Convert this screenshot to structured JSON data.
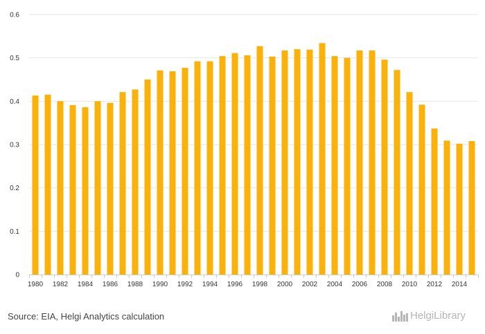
{
  "chart_data": {
    "type": "bar",
    "title": "",
    "xlabel": "",
    "ylabel": "",
    "categories": [
      "1980",
      "1981",
      "1982",
      "1983",
      "1984",
      "1985",
      "1986",
      "1987",
      "1988",
      "1989",
      "1990",
      "1991",
      "1992",
      "1993",
      "1994",
      "1995",
      "1996",
      "1997",
      "1998",
      "1999",
      "2000",
      "2001",
      "2002",
      "2003",
      "2004",
      "2005",
      "2006",
      "2007",
      "2008",
      "2009",
      "2010",
      "2011",
      "2012",
      "2013",
      "2014",
      "2015"
    ],
    "x_tick_labels": [
      "1980",
      "1982",
      "1984",
      "1986",
      "1988",
      "1990",
      "1992",
      "1994",
      "1996",
      "1998",
      "2000",
      "2002",
      "2004",
      "2006",
      "2008",
      "2010",
      "2012",
      "2014"
    ],
    "values": [
      0.413,
      0.415,
      0.4,
      0.391,
      0.386,
      0.4,
      0.396,
      0.421,
      0.427,
      0.45,
      0.471,
      0.469,
      0.477,
      0.492,
      0.492,
      0.504,
      0.511,
      0.506,
      0.527,
      0.503,
      0.517,
      0.52,
      0.519,
      0.534,
      0.504,
      0.5,
      0.517,
      0.517,
      0.496,
      0.472,
      0.421,
      0.392,
      0.337,
      0.309,
      0.302,
      0.308
    ],
    "ylim": [
      0,
      0.6
    ],
    "y_ticks": [
      "0",
      "0.1",
      "0.2",
      "0.3",
      "0.4",
      "0.5",
      "0.6"
    ],
    "grid": true,
    "bar_color": "#FAB10A",
    "grid_color": "#E6E6E6",
    "axis_color": "#CCCCCC"
  },
  "footer": {
    "source": "Source: EIA, Helgi Analytics calculation",
    "logo_text": "HelgiLibrary",
    "logo_icon": "helgi-library-logo-icon"
  }
}
